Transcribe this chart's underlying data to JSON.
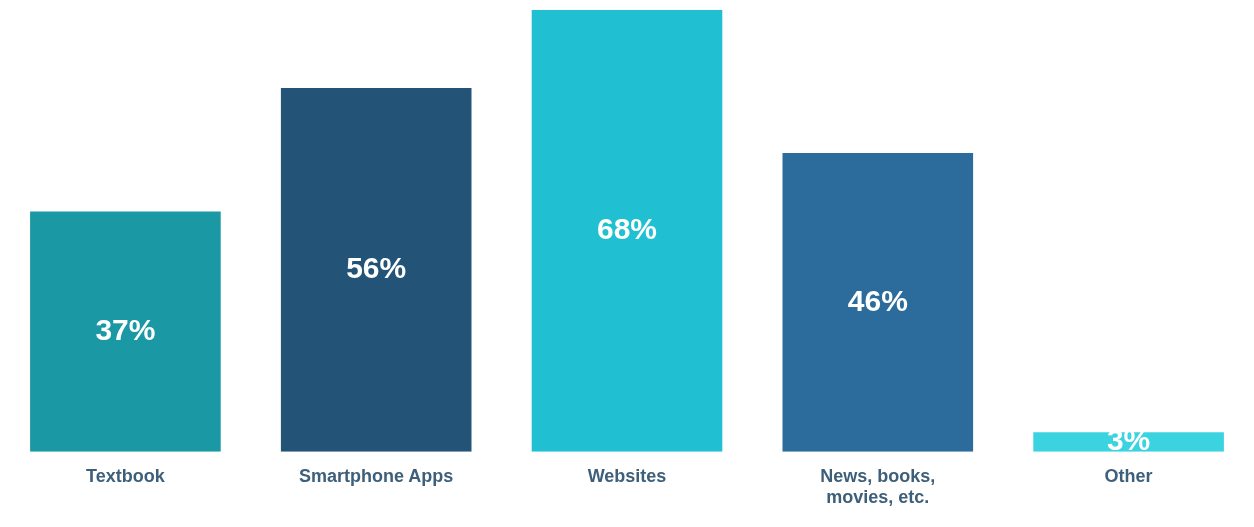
{
  "chart_data": {
    "type": "bar",
    "categories": [
      "Textbook",
      "Smartphone Apps",
      "Websites",
      "News, books, movies, etc.",
      "Other"
    ],
    "values": [
      37,
      56,
      68,
      46,
      3
    ],
    "value_labels": [
      "37%",
      "56%",
      "68%",
      "46%",
      "3%"
    ],
    "colors": [
      "#1a98a4",
      "#235478",
      "#20bfd1",
      "#2b6c9c",
      "#3cd3e0"
    ],
    "tick_labels": "x"
  }
}
